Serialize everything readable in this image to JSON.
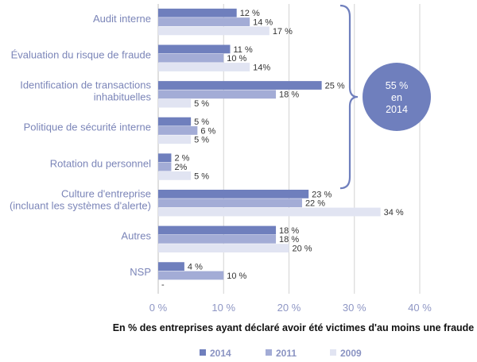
{
  "chart_data": {
    "type": "bar",
    "orientation": "horizontal",
    "categories": [
      [
        "Audit interne"
      ],
      [
        "Évaluation du risque de fraude"
      ],
      [
        "Identification de transactions",
        "inhabituelles"
      ],
      [
        "Politique de sécurité interne"
      ],
      [
        "Rotation du personnel"
      ],
      [
        "Culture d'entreprise",
        "(incluant les systèmes d'alerte)"
      ],
      [
        "Autres"
      ],
      [
        "NSP"
      ]
    ],
    "series": [
      {
        "name": "2014",
        "color": "#6f7fbd",
        "values": [
          12,
          11,
          25,
          5,
          2,
          23,
          18,
          4
        ],
        "labels": [
          "12 %",
          "11 %",
          "25 %",
          "5 %",
          "2 %",
          "23 %",
          "18 %",
          "4 %"
        ]
      },
      {
        "name": "2011",
        "color": "#a3acd6",
        "values": [
          14,
          10,
          18,
          6,
          2,
          22,
          18,
          10
        ],
        "labels": [
          "14 %",
          "10 %",
          "18 %",
          "6 %",
          "2%",
          "22 %",
          "18 %",
          "10 %"
        ]
      },
      {
        "name": "2009",
        "color": "#e1e4f2",
        "values": [
          17,
          14,
          5,
          5,
          5,
          34,
          20,
          null
        ],
        "labels": [
          "17 %",
          "14%",
          "5 %",
          "5 %",
          "5 %",
          "34 %",
          "20 %",
          "-"
        ]
      }
    ],
    "xlim": [
      0,
      40
    ],
    "xticks": [
      0,
      10,
      20,
      30,
      40
    ],
    "xtick_labels": [
      "0 %",
      "10 %",
      "20 %",
      "30 %",
      "40 %"
    ],
    "xlabel": "En % des entreprises ayant déclaré avoir été victimes d'au moins une fraude",
    "grid": true,
    "legend_position": "bottom",
    "callout": {
      "lines": [
        "55 %",
        "en",
        "2014"
      ],
      "color": "#6f7fbd",
      "brace_color": "#6f7fbd",
      "brace_categories": [
        0,
        4
      ]
    }
  }
}
